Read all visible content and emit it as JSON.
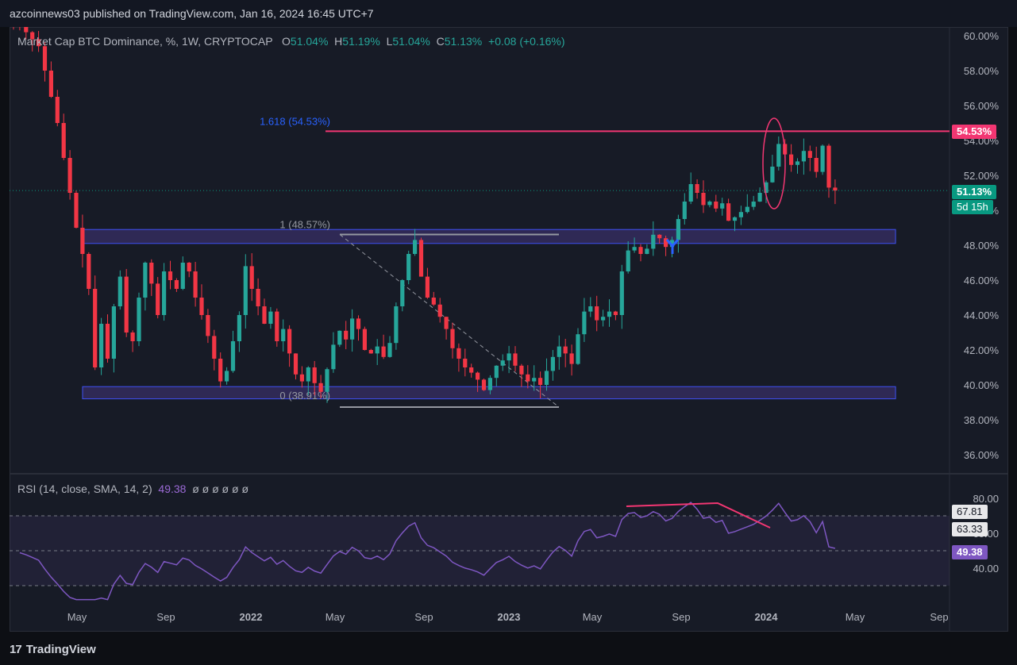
{
  "header": {
    "publisher_text": "azcoinnews03 published on TradingView.com, Jan 16, 2024 16:45 UTC+7"
  },
  "legend": {
    "symbol": "Market Cap BTC Dominance, %, 1W, CRYPTOCAP",
    "open_label": "O",
    "open": "51.04%",
    "high_label": "H",
    "high": "51.19%",
    "low_label": "L",
    "low": "51.04%",
    "close_label": "C",
    "close": "51.13%",
    "change": "+0.08 (+0.16%)"
  },
  "rsi_legend": {
    "label": "RSI (14, close, SMA, 14, 2)",
    "value": "49.38",
    "nulls": "ø ø ø ø ø ø"
  },
  "footer": {
    "brand": "TradingView",
    "logo_text": "17"
  },
  "colors": {
    "up": "#26a69a",
    "down": "#f23645",
    "fib": "#2962ff",
    "resistance": "#f23672",
    "rsi": "#7e57c2"
  },
  "chart_data": [
    {
      "type": "candlestick",
      "title": "Market Cap BTC Dominance, %, 1W, CRYPTOCAP",
      "y_unit": "%",
      "ylim": [
        35,
        61
      ],
      "y_ticks": [
        "60.00%",
        "58.00%",
        "56.00%",
        "54.00%",
        "52.00%",
        "50.00%",
        "48.00%",
        "46.00%",
        "44.00%",
        "42.00%",
        "40.00%",
        "38.00%",
        "36.00%"
      ],
      "x_ticks": [
        "May",
        "Sep",
        "2022",
        "May",
        "Sep",
        "2023",
        "May",
        "Sep",
        "2024",
        "May",
        "Sep"
      ],
      "price_tags": {
        "fib_level": "54.53%",
        "last": "51.13%",
        "countdown": "5d 15h"
      },
      "fib_labels": {
        "top": "1.618 (54.53%)",
        "mid": "1 (48.57%)",
        "bottom": "0 (38.91%)"
      },
      "fib_values": {
        "top": 54.53,
        "mid": 48.57,
        "bottom": 38.91
      },
      "zones": [
        {
          "from": 48.1,
          "to": 48.9
        },
        {
          "from": 39.2,
          "to": 39.9
        }
      ],
      "weekly_closes": [
        60.8,
        60.5,
        60.2,
        59.8,
        59.4,
        58.0,
        56.5,
        55.0,
        53.0,
        51.0,
        49.0,
        47.5,
        45.5,
        41.0,
        43.5,
        41.5,
        44.5,
        46.2,
        43.0,
        42.5,
        45.0,
        47.0,
        45.8,
        44.0,
        46.5,
        46.0,
        45.5,
        47.0,
        46.5,
        45.0,
        44.0,
        42.8,
        41.5,
        40.2,
        40.8,
        42.5,
        44.0,
        46.8,
        45.5,
        44.5,
        43.5,
        44.2,
        42.5,
        43.2,
        41.8,
        40.6,
        40.2,
        41.0,
        40.1,
        39.6,
        40.9,
        42.3,
        43.1,
        42.6,
        43.8,
        43.2,
        42.0,
        41.8,
        42.2,
        41.6,
        42.4,
        44.5,
        46.0,
        47.5,
        48.3,
        46.2,
        45.0,
        44.6,
        43.9,
        43.2,
        42.1,
        41.5,
        41.0,
        40.7,
        40.3,
        39.7,
        40.4,
        41.1,
        41.4,
        41.8,
        41.1,
        40.6,
        40.2,
        40.4,
        40.0,
        40.8,
        41.6,
        42.2,
        41.8,
        41.2,
        42.9,
        44.2,
        44.5,
        43.7,
        43.9,
        44.2,
        44.0,
        46.5,
        47.7,
        47.9,
        47.5,
        47.8,
        48.6,
        48.4,
        47.9,
        48.3,
        49.5,
        50.5,
        51.5,
        51.0,
        50.3,
        50.5,
        50.1,
        50.4,
        49.4,
        49.6,
        49.9,
        50.2,
        50.5,
        51.0,
        51.6,
        52.5,
        53.8,
        53.2,
        52.6,
        52.8,
        53.4,
        53.0,
        52.2,
        53.7,
        51.3,
        51.13
      ]
    },
    {
      "type": "line",
      "title": "RSI (14, close, SMA, 14, 2)",
      "ylim": [
        20,
        90
      ],
      "y_ticks": [
        "80.00",
        "60.00",
        "40.00"
      ],
      "level_tags": [
        "67.81",
        "63.33",
        "49.38"
      ],
      "bands": {
        "upper": 70,
        "middle": 50,
        "lower": 30
      },
      "last": 49.38
    }
  ]
}
